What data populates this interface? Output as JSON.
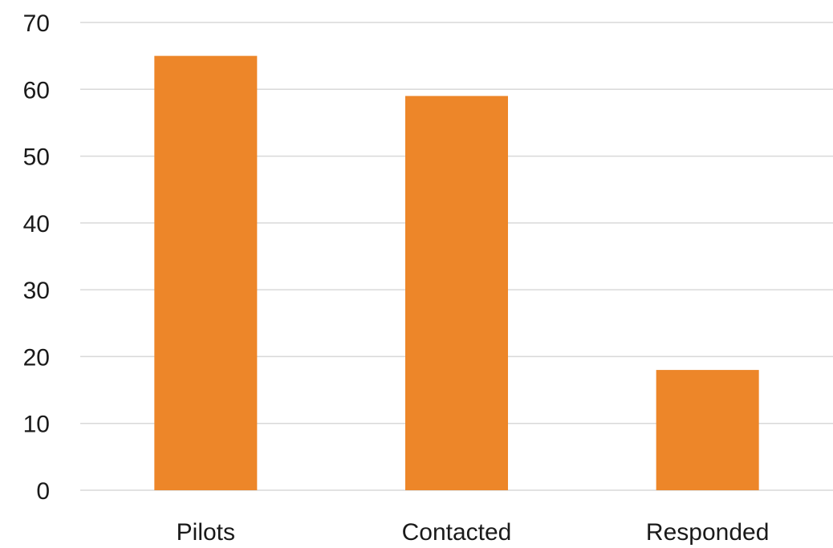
{
  "chart_data": {
    "type": "bar",
    "categories": [
      "Pilots",
      "Contacted",
      "Responded"
    ],
    "values": [
      65,
      59,
      18
    ],
    "title": "",
    "xlabel": "",
    "ylabel": "",
    "ylim": [
      0,
      70
    ],
    "yticks": [
      0,
      10,
      20,
      30,
      40,
      50,
      60,
      70
    ],
    "grid": true,
    "legend": "none",
    "colors": {
      "bar": "#ed8629",
      "grid": "#d9d9d9",
      "text": "#1a1a1a"
    }
  }
}
